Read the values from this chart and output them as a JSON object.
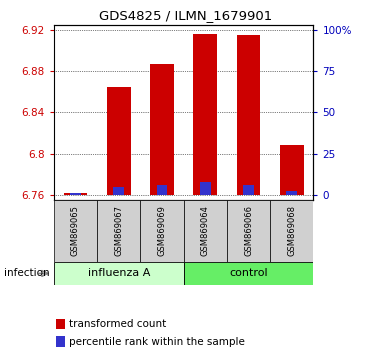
{
  "title": "GDS4825 / ILMN_1679901",
  "samples": [
    "GSM869065",
    "GSM869067",
    "GSM869069",
    "GSM869064",
    "GSM869066",
    "GSM869068"
  ],
  "transformed_counts": [
    6.762,
    6.865,
    6.887,
    6.916,
    6.915,
    6.808
  ],
  "percentile_ranks": [
    6.762,
    6.768,
    6.77,
    6.772,
    6.77,
    6.764
  ],
  "bar_base": 6.76,
  "ylim_min": 6.755,
  "ylim_max": 6.925,
  "yticks_left": [
    6.76,
    6.8,
    6.84,
    6.88,
    6.92
  ],
  "right_tick_positions": [
    6.76,
    6.8,
    6.84,
    6.88,
    6.92
  ],
  "right_tick_labels": [
    "0",
    "25",
    "50",
    "75",
    "100%"
  ],
  "left_color": "#cc0000",
  "right_color": "#0000bb",
  "bar_color_red": "#cc0000",
  "bar_color_blue": "#3333cc",
  "bar_width": 0.55,
  "influenza_color": "#ccffcc",
  "control_color": "#66ee66",
  "legend_text1": "transformed count",
  "legend_text2": "percentile rank within the sample",
  "infection_label": "infection"
}
